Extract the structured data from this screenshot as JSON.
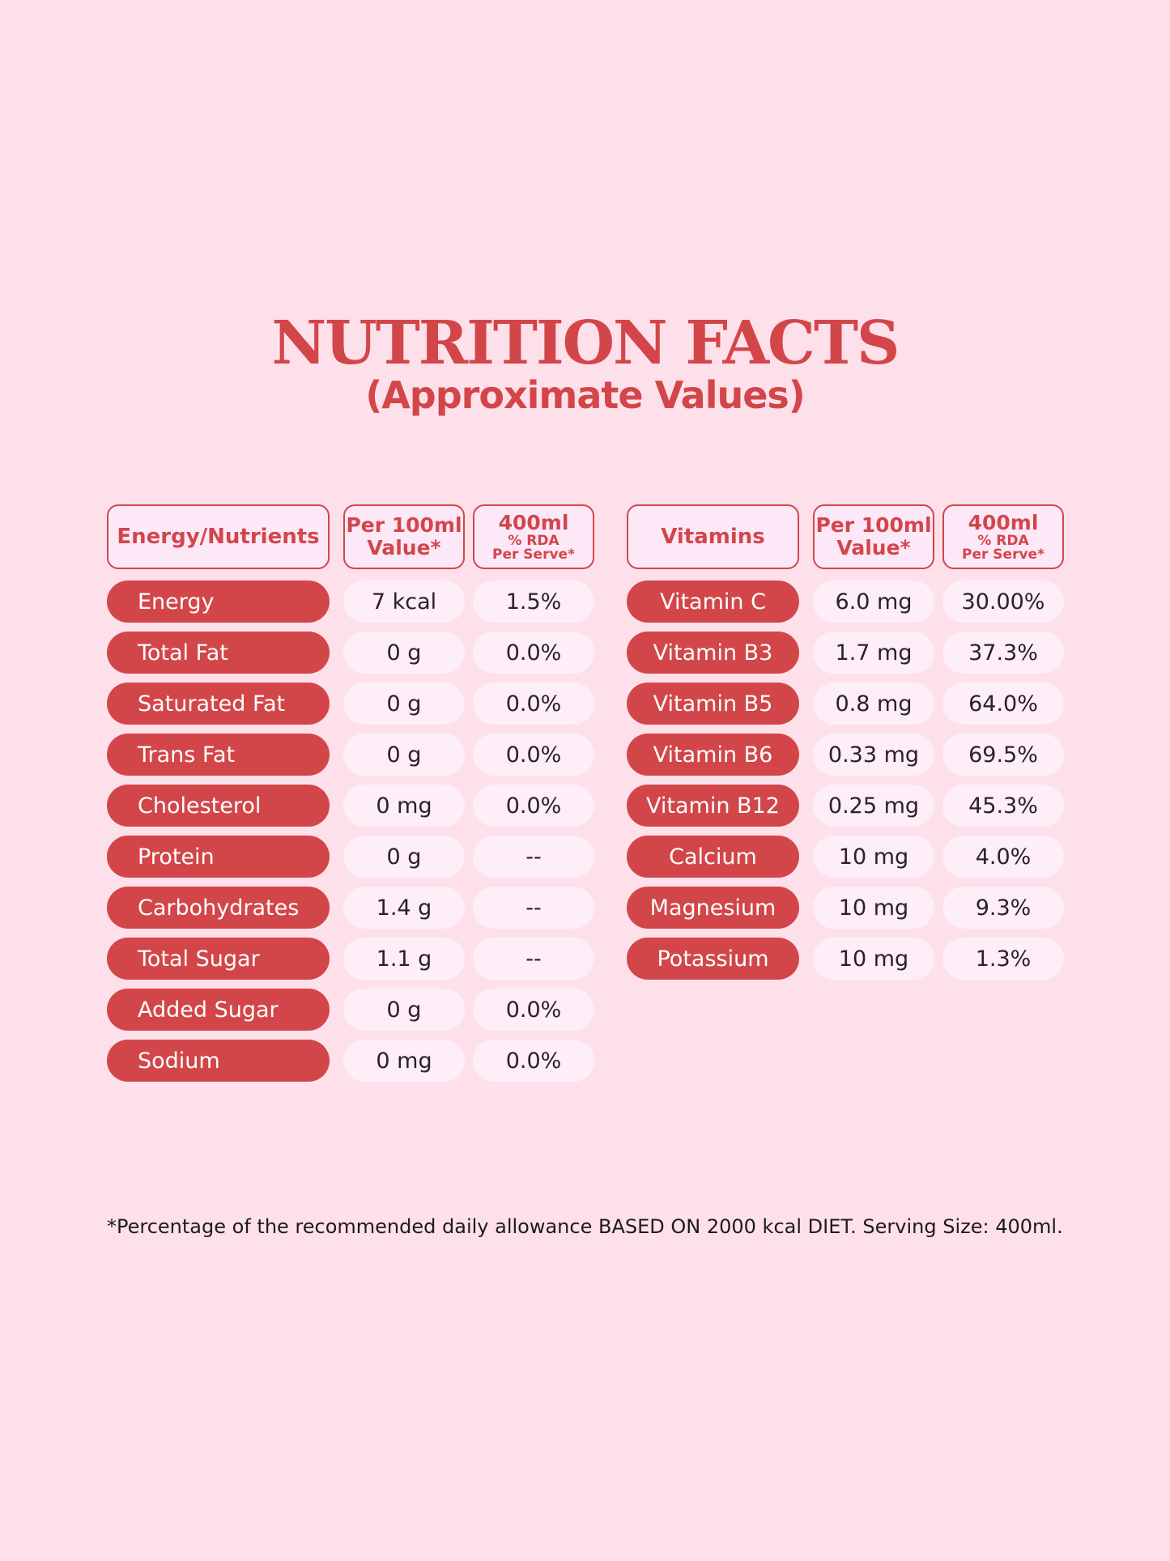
{
  "title": "NUTRITION FACTS",
  "subtitle": "(Approximate Values)",
  "colors": {
    "accent": "#D2464A",
    "background": "#FEE0EA",
    "cell": "#FDEEF8"
  },
  "nutrients": {
    "headers": {
      "name": "Energy/Nutrients",
      "per100_line1": "Per 100ml",
      "per100_line2": "Value*",
      "serve_line1": "400ml",
      "serve_line2": "% RDA",
      "serve_line3": "Per Serve*"
    },
    "rows": [
      {
        "name": "Energy",
        "per100": "7 kcal",
        "rda": "1.5%"
      },
      {
        "name": "Total Fat",
        "per100": "0 g",
        "rda": "0.0%"
      },
      {
        "name": "Saturated Fat",
        "per100": "0 g",
        "rda": "0.0%"
      },
      {
        "name": "Trans Fat",
        "per100": "0 g",
        "rda": "0.0%"
      },
      {
        "name": "Cholesterol",
        "per100": "0 mg",
        "rda": "0.0%"
      },
      {
        "name": "Protein",
        "per100": "0 g",
        "rda": "--"
      },
      {
        "name": "Carbohydrates",
        "per100": "1.4 g",
        "rda": "--"
      },
      {
        "name": "Total Sugar",
        "per100": "1.1 g",
        "rda": "--"
      },
      {
        "name": "Added Sugar",
        "per100": "0 g",
        "rda": "0.0%"
      },
      {
        "name": "Sodium",
        "per100": "0 mg",
        "rda": "0.0%"
      }
    ]
  },
  "vitamins": {
    "headers": {
      "name": "Vitamins",
      "per100_line1": "Per 100ml",
      "per100_line2": "Value*",
      "serve_line1": "400ml",
      "serve_line2": "% RDA",
      "serve_line3": "Per Serve*"
    },
    "rows": [
      {
        "name": "Vitamin C",
        "per100": "6.0 mg",
        "rda": "30.00%"
      },
      {
        "name": "Vitamin B3",
        "per100": "1.7 mg",
        "rda": "37.3%"
      },
      {
        "name": "Vitamin B5",
        "per100": "0.8 mg",
        "rda": "64.0%"
      },
      {
        "name": "Vitamin B6",
        "per100": "0.33 mg",
        "rda": "69.5%"
      },
      {
        "name": "Vitamin B12",
        "per100": "0.25 mg",
        "rda": "45.3%"
      },
      {
        "name": "Calcium",
        "per100": "10 mg",
        "rda": "4.0%"
      },
      {
        "name": "Magnesium",
        "per100": "10 mg",
        "rda": "9.3%"
      },
      {
        "name": "Potassium",
        "per100": "10 mg",
        "rda": "1.3%"
      }
    ]
  },
  "footnote": "*Percentage of the recommended daily allowance BASED ON 2000 kcal DIET. Serving Size: 400ml."
}
